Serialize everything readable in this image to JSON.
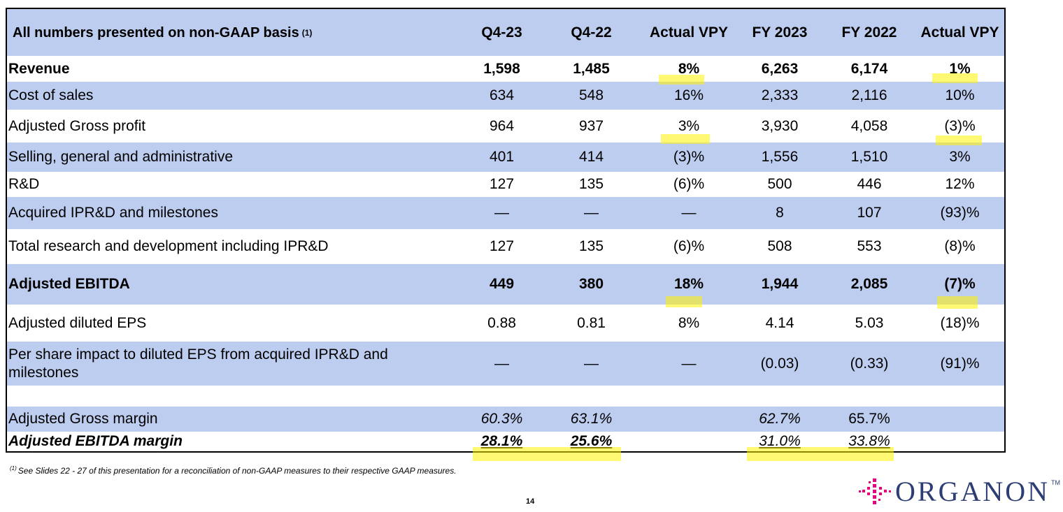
{
  "table": {
    "header": {
      "label": "All numbers presented on non-GAAP basis",
      "footnote_ref": "(1)",
      "columns": [
        "Q4-23",
        "Q4-22",
        "Actual VPY",
        "FY 2023",
        "FY 2022",
        "Actual VPY"
      ]
    },
    "rows": [
      {
        "label": "Revenue",
        "values": [
          "1,598",
          "1,485",
          "8%",
          "6,263",
          "6,174",
          "1%"
        ]
      },
      {
        "label": "Cost of sales",
        "values": [
          "634",
          "548",
          "16%",
          "2,333",
          "2,116",
          "10%"
        ]
      },
      {
        "label": "Adjusted Gross profit",
        "values": [
          "964",
          "937",
          "3%",
          "3,930",
          "4,058",
          "(3)%"
        ]
      },
      {
        "label": "Selling, general and administrative",
        "values": [
          "401",
          "414",
          "(3)%",
          "1,556",
          "1,510",
          "3%"
        ]
      },
      {
        "label": "R&D",
        "values": [
          "127",
          "135",
          "(6)%",
          "500",
          "446",
          "12%"
        ]
      },
      {
        "label": "Acquired IPR&D and milestones",
        "values": [
          "—",
          "—",
          "—",
          "8",
          "107",
          "(93)%"
        ]
      },
      {
        "label": "Total research and development including IPR&D",
        "values": [
          "127",
          "135",
          "(6)%",
          "508",
          "553",
          "(8)%"
        ]
      },
      {
        "label": "Adjusted EBITDA",
        "values": [
          "449",
          "380",
          "18%",
          "1,944",
          "2,085",
          "(7)%"
        ]
      },
      {
        "label": "Adjusted diluted EPS",
        "values": [
          "0.88",
          "0.81",
          "8%",
          "4.14",
          "5.03",
          "(18)%"
        ]
      },
      {
        "label": "Per share impact to diluted EPS from acquired IPR&D and milestones",
        "values": [
          "—",
          "—",
          "—",
          "(0.03)",
          "(0.33)",
          "(91)%"
        ]
      },
      {
        "label": "Adjusted Gross margin",
        "values": [
          "60.3%",
          "63.1%",
          "",
          "62.7%",
          "65.7%",
          ""
        ]
      },
      {
        "label": "Adjusted EBITDA margin",
        "values": [
          "28.1%",
          "25.6%",
          "",
          "31.0%",
          "33.8%",
          ""
        ]
      }
    ]
  },
  "footnote": {
    "ref": "(1)",
    "text": "See Slides 22 - 27 of this presentation for a reconciliation of non-GAAP measures to their respective GAAP measures."
  },
  "page_number": "14",
  "logo": {
    "text": "ORGANON",
    "tm": "TM"
  },
  "colors": {
    "row_shade": "#bccdef",
    "highlight": "#fff200",
    "logo_pink": "#e6007e",
    "logo_navy": "#2c3e73"
  }
}
